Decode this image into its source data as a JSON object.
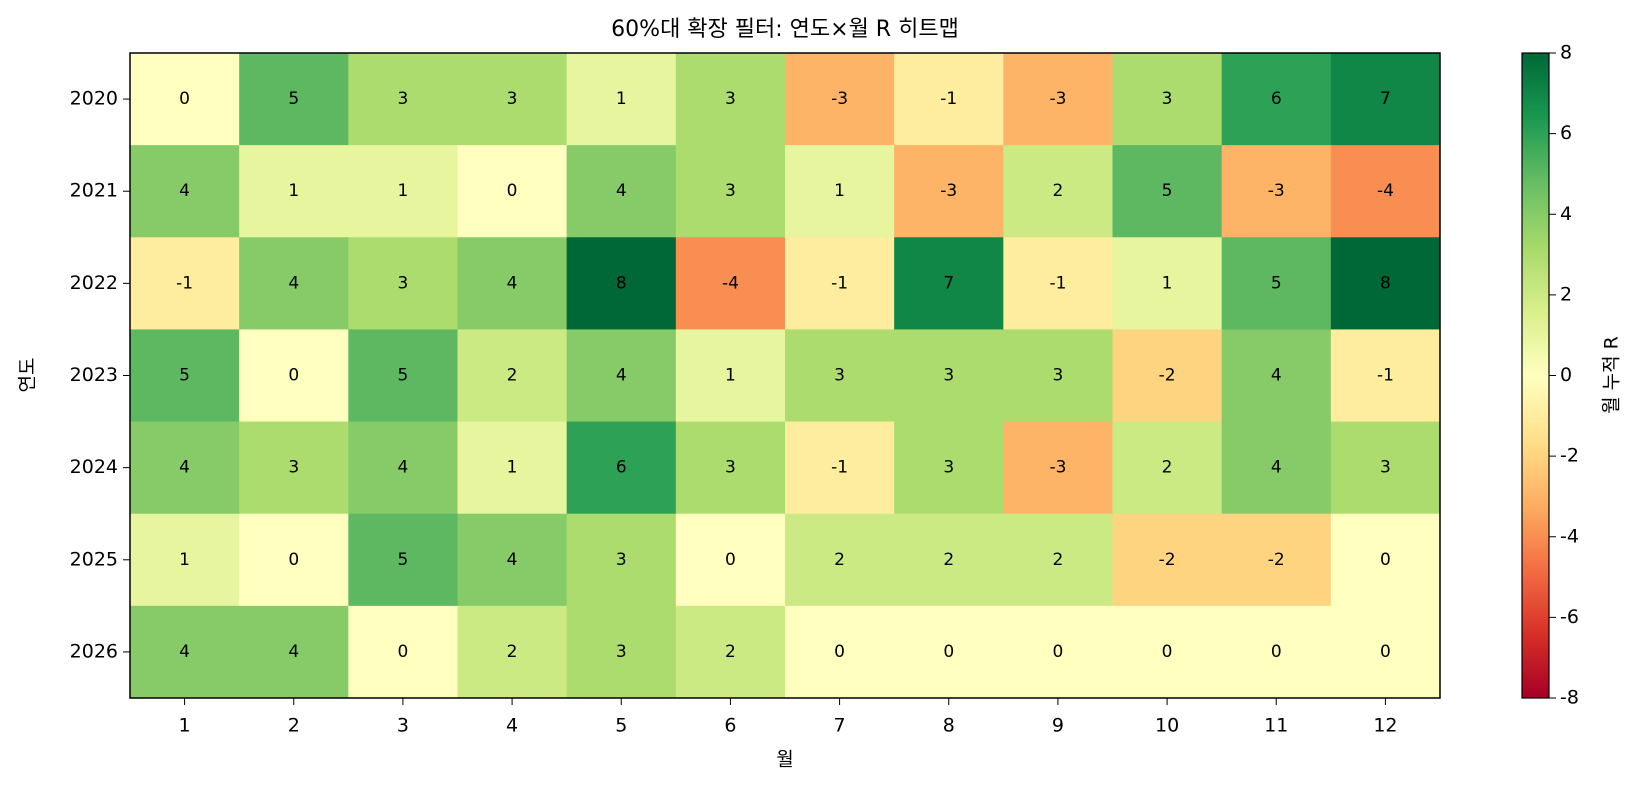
{
  "chart_data": {
    "type": "heatmap",
    "title": "60%대 확장 필터: 연도×월 R 히트맵",
    "x_label": "월",
    "y_label": "연도",
    "colorbar_label": "월 누적 R",
    "colormap": "RdYlGn",
    "x_categories": [
      "1",
      "2",
      "3",
      "4",
      "5",
      "6",
      "7",
      "8",
      "9",
      "10",
      "11",
      "12"
    ],
    "y_categories": [
      "2020",
      "2021",
      "2022",
      "2023",
      "2024",
      "2025",
      "2026"
    ],
    "values": [
      [
        0,
        5,
        3,
        3,
        1,
        3,
        -3,
        -1,
        -3,
        3,
        6,
        7
      ],
      [
        4,
        1,
        1,
        0,
        4,
        3,
        1,
        -3,
        2,
        5,
        -3,
        -4
      ],
      [
        -1,
        4,
        3,
        4,
        8,
        -4,
        -1,
        7,
        -1,
        1,
        5,
        8
      ],
      [
        5,
        0,
        5,
        2,
        4,
        1,
        3,
        3,
        3,
        -2,
        4,
        -1
      ],
      [
        4,
        3,
        4,
        1,
        6,
        3,
        -1,
        3,
        -3,
        2,
        4,
        3
      ],
      [
        1,
        0,
        5,
        4,
        3,
        0,
        2,
        2,
        2,
        -2,
        -2,
        0
      ],
      [
        4,
        4,
        0,
        2,
        3,
        2,
        0,
        0,
        0,
        0,
        0,
        0
      ]
    ],
    "clim": [
      -8,
      8
    ],
    "colorbar_ticks": [
      -8,
      -6,
      -4,
      -2,
      0,
      2,
      4,
      6,
      8
    ]
  }
}
